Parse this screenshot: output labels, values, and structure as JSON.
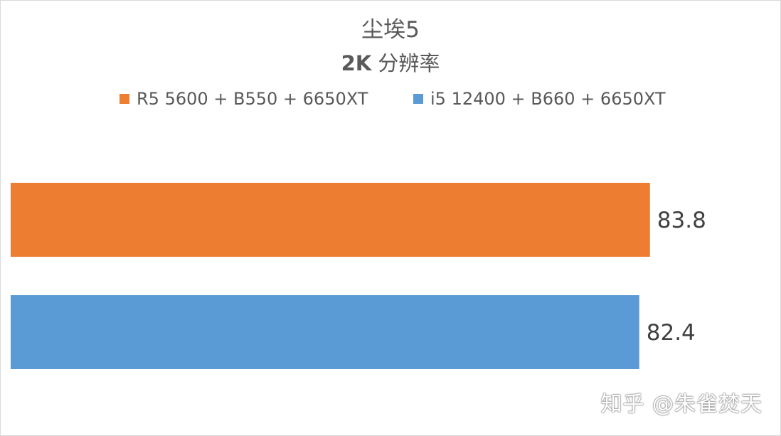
{
  "title_main": "尘埃5",
  "subtitle_bold": "2K",
  "subtitle_rest": " 分辨率",
  "watermark": "知乎 @朱雀焚天",
  "colors": {
    "series1": "#ED7D31",
    "series2": "#5B9BD5",
    "text": "#595959"
  },
  "chart_data": {
    "type": "bar",
    "orientation": "horizontal",
    "title": "尘埃5",
    "subtitle": "2K 分辨率",
    "legend_position": "top",
    "grid": false,
    "categories": [
      ""
    ],
    "xlim": [
      0,
      85.5
    ],
    "series": [
      {
        "name": "R5 5600 + B550 + 6650XT",
        "values": [
          83.8
        ],
        "color": "#ED7D31"
      },
      {
        "name": "i5 12400 + B660 + 6650XT",
        "values": [
          82.4
        ],
        "color": "#5B9BD5"
      }
    ],
    "data_labels": [
      "83.8",
      "82.4"
    ]
  }
}
